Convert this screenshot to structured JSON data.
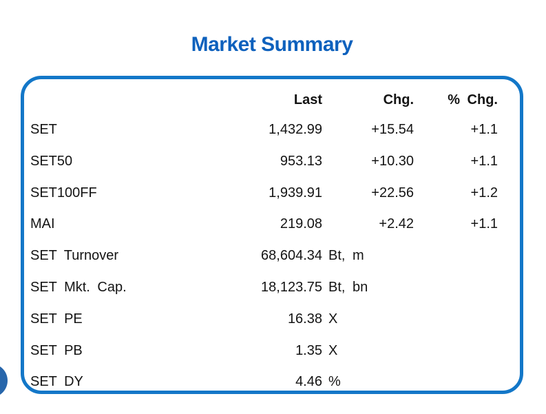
{
  "title": "Market Summary",
  "table": {
    "headers": {
      "last": "Last",
      "chg": "Chg.",
      "pct": "% Chg."
    },
    "rows": [
      {
        "label": "SET",
        "last": "1,432.99",
        "unit": "",
        "chg": "+15.54",
        "pct": "+1.1"
      },
      {
        "label": "SET50",
        "last": "953.13",
        "unit": "",
        "chg": "+10.30",
        "pct": "+1.1"
      },
      {
        "label": "SET100FF",
        "last": "1,939.91",
        "unit": "",
        "chg": "+22.56",
        "pct": "+1.2"
      },
      {
        "label": "MAI",
        "last": "219.08",
        "unit": "",
        "chg": "+2.42",
        "pct": "+1.1"
      },
      {
        "label": "SET Turnover",
        "last": "68,604.34",
        "unit": "Bt, m",
        "chg": "",
        "pct": ""
      },
      {
        "label": "SET Mkt. Cap.",
        "last": "18,123.75",
        "unit": "Bt, bn",
        "chg": "",
        "pct": ""
      },
      {
        "label": "SET PE",
        "last": "16.38",
        "unit": "X",
        "chg": "",
        "pct": ""
      },
      {
        "label": "SET PB",
        "last": "1.35",
        "unit": "X",
        "chg": "",
        "pct": ""
      },
      {
        "label": "SET DY",
        "last": "4.46",
        "unit": "%",
        "chg": "",
        "pct": ""
      }
    ]
  },
  "colors": {
    "title_blue": "#0e61bd",
    "border_blue": "#1377c8",
    "circle_blue": "#2766ab",
    "text": "#141414"
  }
}
